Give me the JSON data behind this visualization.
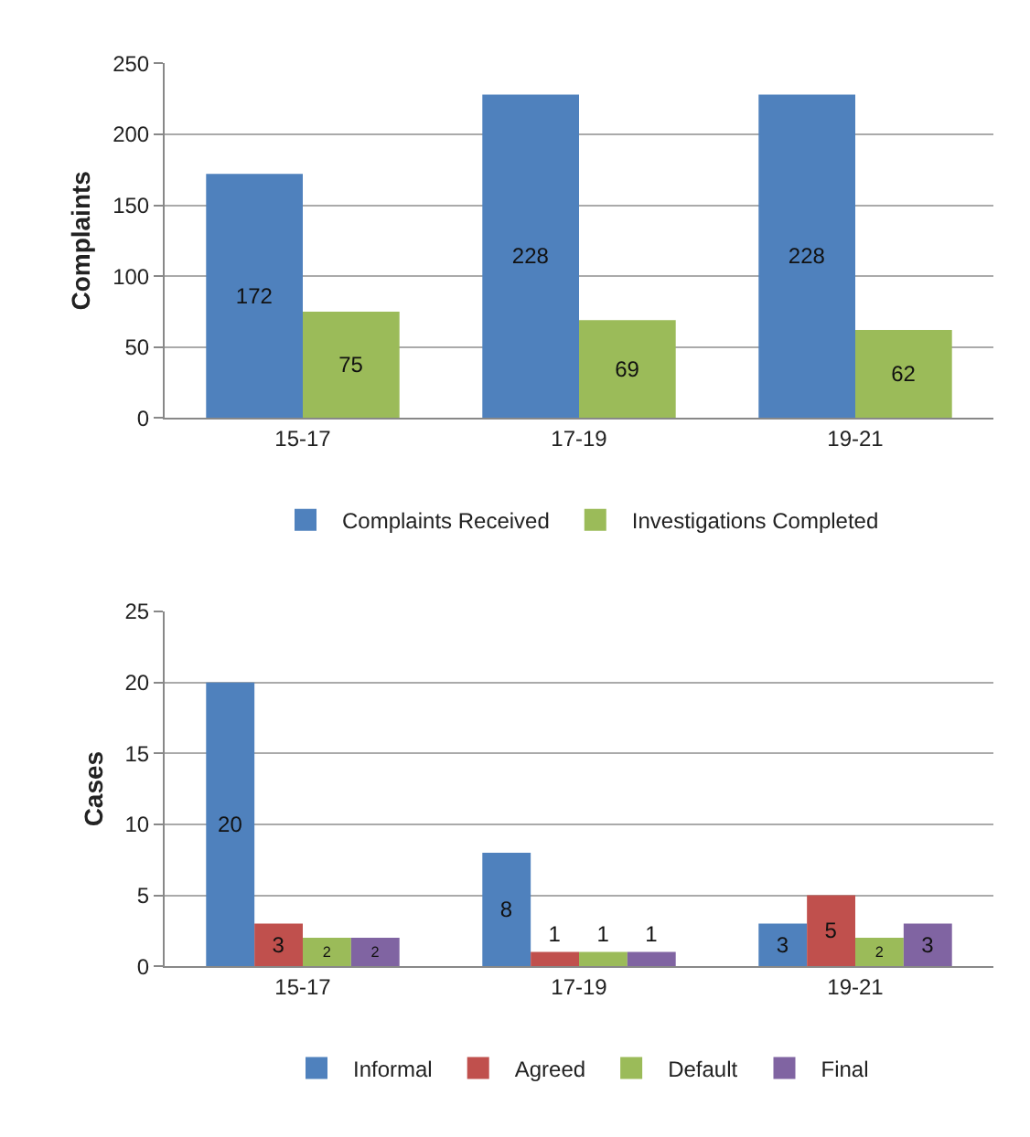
{
  "chart_data": [
    {
      "type": "bar",
      "ylabel": "Complaints",
      "categories": [
        "15-17",
        "17-19",
        "19-21"
      ],
      "series": [
        {
          "name": "Complaints Received",
          "color": "#4f81bd",
          "values": [
            172,
            228,
            228
          ]
        },
        {
          "name": "Investigations Completed",
          "color": "#9bbb59",
          "values": [
            75,
            69,
            62
          ]
        }
      ],
      "ylim": [
        0,
        250
      ],
      "yticks": [
        0,
        50,
        100,
        150,
        200,
        250
      ],
      "grid": "y",
      "legend": "bottom",
      "data_labels": true
    },
    {
      "type": "bar",
      "ylabel": "Cases",
      "categories": [
        "15-17",
        "17-19",
        "19-21"
      ],
      "series": [
        {
          "name": "Informal",
          "color": "#4f81bd",
          "values": [
            20,
            8,
            3
          ]
        },
        {
          "name": "Agreed",
          "color": "#c0504d",
          "values": [
            3,
            1,
            5
          ]
        },
        {
          "name": "Default",
          "color": "#9bbb59",
          "values": [
            2,
            1,
            2
          ]
        },
        {
          "name": "Final",
          "color": "#8064a2",
          "values": [
            2,
            1,
            3
          ]
        }
      ],
      "ylim": [
        0,
        25
      ],
      "yticks": [
        0,
        5,
        10,
        15,
        20,
        25
      ],
      "grid": "y",
      "legend": "bottom",
      "data_labels": true
    }
  ]
}
